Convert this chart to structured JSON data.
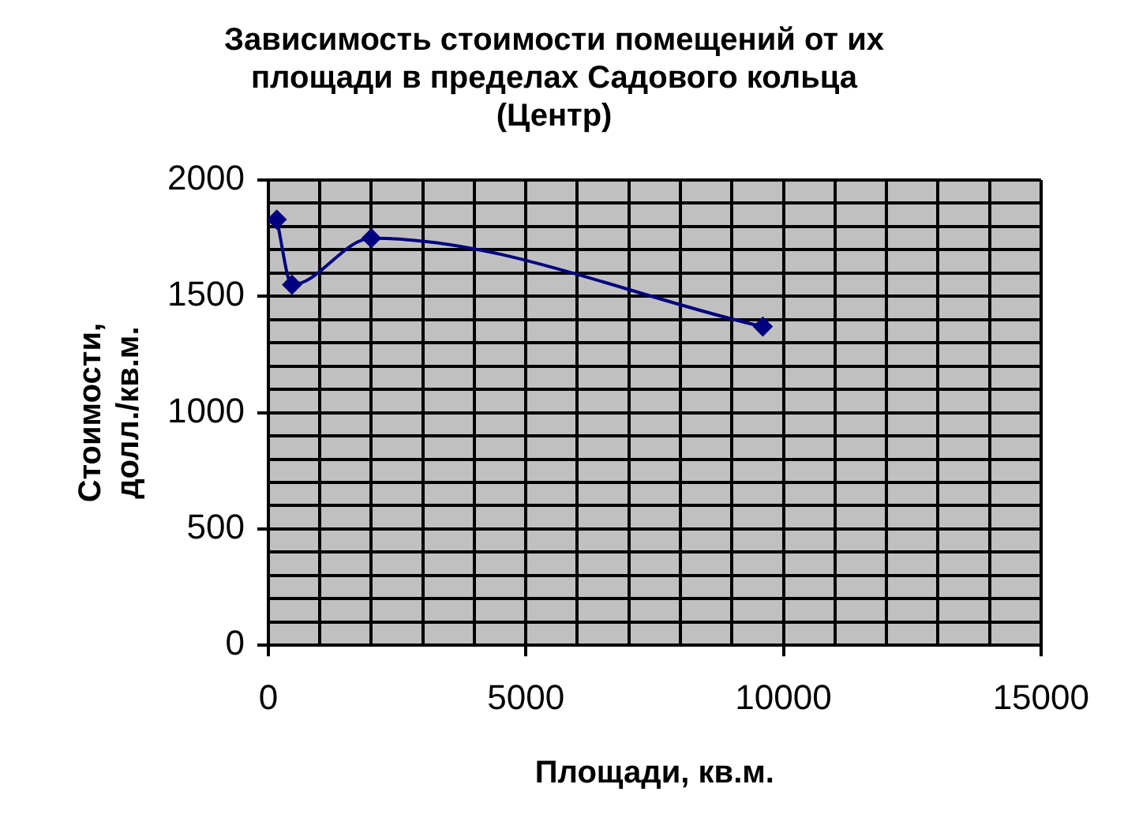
{
  "chart_data": {
    "type": "line",
    "title": "Зависимость стоимости помещений от их\nплощади в пределах Садового кольца\n(Центр)",
    "xlabel": "Площади, кв.м.",
    "ylabel": "Стоимости,\nдолл./кв.м.",
    "series": [
      {
        "color": "#000080",
        "x": [
          165,
          460,
          2000,
          9600
        ],
        "values": [
          1830,
          1550,
          1750,
          1370
        ]
      }
    ],
    "xlim": [
      0,
      15000
    ],
    "xticks": [
      0,
      {
        "value": 1000,
        "label": null
      },
      {
        "value": 2000,
        "label": null
      },
      {
        "value": 3000,
        "label": null
      },
      {
        "value": 4000,
        "label": null
      },
      5000,
      {
        "value": 6000,
        "label": null
      },
      {
        "value": 7000,
        "label": null
      },
      {
        "value": 8000,
        "label": null
      },
      {
        "value": 9000,
        "label": null
      },
      10000,
      {
        "value": 11000,
        "label": null
      },
      {
        "value": 12000,
        "label": null
      },
      {
        "value": 13000,
        "label": null
      },
      {
        "value": 14000,
        "label": null
      },
      15000
    ],
    "ylim": [
      0,
      2000
    ],
    "yticks": [
      0,
      {
        "value": 100,
        "label": null
      },
      {
        "value": 200,
        "label": null
      },
      {
        "value": 300,
        "label": null
      },
      {
        "value": 400,
        "label": null
      },
      500,
      {
        "value": 600,
        "label": null
      },
      {
        "value": 700,
        "label": null
      },
      {
        "value": 800,
        "label": null
      },
      {
        "value": 900,
        "label": null
      },
      1000,
      {
        "value": 1100,
        "label": null
      },
      {
        "value": 1200,
        "label": null
      },
      {
        "value": 1300,
        "label": null
      },
      {
        "value": 1400,
        "label": null
      },
      1500,
      {
        "value": 1600,
        "label": null
      },
      {
        "value": 1700,
        "label": null
      },
      {
        "value": 1800,
        "label": null
      },
      {
        "value": 1900,
        "label": null
      },
      2000
    ],
    "grid": true,
    "legend": false,
    "marker": "diamond",
    "line_style": "solid"
  }
}
